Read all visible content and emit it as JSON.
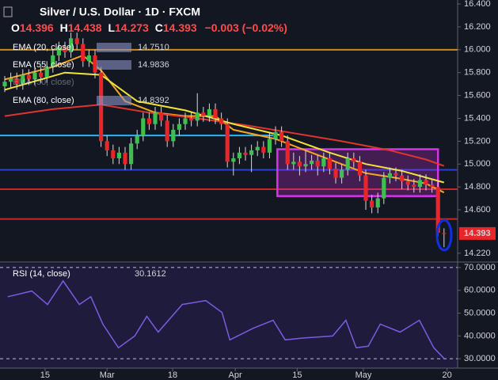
{
  "chart_data": {
    "type": "candlestick",
    "title": "Silver / U.S. Dollar · 1D · FXCM",
    "quote": {
      "o_label": "O",
      "o": 14.396,
      "h_label": "H",
      "h": 14.438,
      "l_label": "L",
      "l": 14.273,
      "c_label": "C",
      "c": 14.393,
      "change": "−0.003 (−0.02%)"
    },
    "ohlc": [
      [
        15.68,
        15.77,
        15.63,
        15.72
      ],
      [
        15.72,
        15.8,
        15.67,
        15.75
      ],
      [
        15.75,
        15.8,
        15.65,
        15.7
      ],
      [
        15.7,
        15.83,
        15.65,
        15.78
      ],
      [
        15.78,
        15.83,
        15.69,
        15.74
      ],
      [
        15.74,
        15.85,
        15.69,
        15.8
      ],
      [
        15.8,
        15.85,
        15.71,
        15.76
      ],
      [
        15.76,
        15.9,
        15.71,
        15.85
      ],
      [
        15.85,
        16.0,
        15.8,
        15.95
      ],
      [
        15.95,
        16.07,
        15.9,
        16.02
      ],
      [
        16.02,
        16.07,
        15.93,
        15.98
      ],
      [
        15.98,
        16.15,
        15.93,
        16.1
      ],
      [
        16.1,
        16.15,
        16.0,
        16.05
      ],
      [
        16.05,
        16.1,
        15.85,
        15.9
      ],
      [
        15.9,
        16.0,
        15.85,
        15.95
      ],
      [
        15.95,
        16.0,
        15.75,
        15.8
      ],
      [
        15.8,
        15.85,
        15.15,
        15.2
      ],
      [
        15.2,
        15.25,
        15.07,
        15.12
      ],
      [
        15.12,
        15.17,
        15.0,
        15.05
      ],
      [
        15.05,
        15.15,
        15.0,
        15.1
      ],
      [
        15.1,
        15.15,
        14.95,
        15.0
      ],
      [
        15.0,
        15.23,
        14.95,
        15.18
      ],
      [
        15.18,
        15.3,
        15.13,
        15.25
      ],
      [
        15.25,
        15.45,
        15.2,
        15.4
      ],
      [
        15.4,
        15.45,
        15.3,
        15.35
      ],
      [
        15.35,
        15.5,
        15.3,
        15.45
      ],
      [
        15.45,
        15.5,
        15.33,
        15.38
      ],
      [
        15.38,
        15.43,
        15.15,
        15.2
      ],
      [
        15.2,
        15.35,
        15.15,
        15.3
      ],
      [
        15.3,
        15.4,
        15.25,
        15.35
      ],
      [
        15.35,
        15.45,
        15.3,
        15.4
      ],
      [
        15.4,
        15.45,
        15.33,
        15.38
      ],
      [
        15.38,
        15.62,
        15.33,
        15.45
      ],
      [
        15.45,
        15.5,
        15.37,
        15.42
      ],
      [
        15.42,
        15.53,
        15.37,
        15.48
      ],
      [
        15.48,
        15.53,
        15.35,
        15.4
      ],
      [
        15.4,
        15.45,
        15.3,
        15.35
      ],
      [
        15.35,
        15.4,
        14.97,
        15.02
      ],
      [
        15.02,
        15.1,
        14.9,
        15.05
      ],
      [
        15.05,
        15.15,
        15.0,
        15.1
      ],
      [
        15.1,
        15.15,
        15.03,
        15.08
      ],
      [
        15.08,
        15.17,
        14.93,
        15.12
      ],
      [
        15.12,
        15.2,
        15.07,
        15.15
      ],
      [
        15.15,
        15.2,
        15.05,
        15.1
      ],
      [
        15.1,
        15.27,
        15.05,
        15.22
      ],
      [
        15.22,
        15.33,
        15.17,
        15.28
      ],
      [
        15.28,
        15.33,
        15.15,
        15.2
      ],
      [
        15.2,
        15.25,
        14.95,
        15.0
      ],
      [
        15.0,
        15.1,
        14.95,
        15.02
      ],
      [
        15.02,
        15.07,
        14.9,
        14.98
      ],
      [
        14.98,
        15.12,
        14.93,
        15.0
      ],
      [
        15.0,
        15.08,
        14.95,
        15.03
      ],
      [
        15.03,
        15.08,
        14.9,
        14.98
      ],
      [
        14.98,
        15.1,
        14.93,
        15.05
      ],
      [
        15.05,
        15.1,
        14.91,
        14.96
      ],
      [
        14.96,
        15.01,
        14.83,
        14.88
      ],
      [
        14.88,
        15.0,
        14.83,
        14.95
      ],
      [
        14.95,
        15.1,
        14.9,
        15.05
      ],
      [
        15.05,
        15.1,
        14.97,
        15.02
      ],
      [
        15.02,
        15.07,
        14.85,
        14.9
      ],
      [
        14.9,
        14.95,
        14.6,
        14.68
      ],
      [
        14.68,
        14.73,
        14.57,
        14.62
      ],
      [
        14.62,
        14.75,
        14.57,
        14.7
      ],
      [
        14.7,
        14.93,
        14.65,
        14.88
      ],
      [
        14.88,
        14.97,
        14.83,
        14.92
      ],
      [
        14.92,
        14.97,
        14.85,
        14.9
      ],
      [
        14.9,
        14.95,
        14.78,
        14.85
      ],
      [
        14.85,
        14.9,
        14.77,
        14.82
      ],
      [
        14.82,
        14.87,
        14.75,
        14.8
      ],
      [
        14.8,
        14.91,
        14.75,
        14.86
      ],
      [
        14.86,
        14.91,
        14.77,
        14.82
      ],
      [
        14.82,
        14.87,
        14.75,
        14.8
      ],
      [
        14.8,
        14.85,
        14.37,
        14.4
      ],
      [
        14.396,
        14.438,
        14.273,
        14.393
      ]
    ],
    "up_color": "#3fbf4f",
    "down_color": "#e8262a",
    "ema": [
      {
        "name": "EMA (20, close)",
        "value_label": "14.7510",
        "color": "#f5a623",
        "x": [
          0,
          8,
          13,
          16,
          20,
          25,
          30,
          35,
          38,
          45,
          50,
          55,
          60,
          65,
          70,
          73
        ],
        "values": [
          15.74,
          15.85,
          15.95,
          15.82,
          15.55,
          15.45,
          15.42,
          15.42,
          15.3,
          15.22,
          15.12,
          15.02,
          14.92,
          14.88,
          14.83,
          14.751
        ]
      },
      {
        "name": "EMA (55, close)",
        "value_label": "14.9836",
        "color": "#e0342f",
        "x": [
          0,
          8,
          16,
          24,
          32,
          40,
          48,
          56,
          64,
          70,
          73
        ],
        "values": [
          15.42,
          15.48,
          15.52,
          15.45,
          15.4,
          15.34,
          15.27,
          15.2,
          15.12,
          15.04,
          14.9836
        ]
      },
      {
        "name": "EMA (80, close)",
        "value_label": "14.8392",
        "color": "#f2e33a",
        "x": [
          0,
          10,
          16,
          22,
          30,
          38,
          46,
          54,
          60,
          66,
          73
        ],
        "values": [
          15.65,
          15.8,
          15.78,
          15.55,
          15.47,
          15.35,
          15.25,
          15.1,
          15.0,
          14.94,
          14.8392
        ]
      }
    ],
    "hidden_indicator": "EMA (30, close)",
    "hlines": [
      {
        "value": 16.0,
        "color": "#c98a1e"
      },
      {
        "value": 15.25,
        "color": "#29b6f6",
        "x_end": 44.6
      },
      {
        "value": 14.95,
        "color": "#2a3fd6"
      },
      {
        "value": 14.78,
        "color": "#c62828"
      },
      {
        "value": 14.52,
        "color": "#c62828"
      }
    ],
    "box": {
      "x": [
        45.3,
        72
      ],
      "y": [
        15.13,
        14.72
      ],
      "color": "#d633e8"
    },
    "xlim": [
      -0.79,
      75.26
    ],
    "xticks": [
      {
        "value": 6.7,
        "label": "15"
      },
      {
        "value": 17,
        "label": "Mar"
      },
      {
        "value": 27.9,
        "label": "18"
      },
      {
        "value": 38.3,
        "label": "Apr"
      },
      {
        "value": 48.6,
        "label": "15"
      },
      {
        "value": 59.6,
        "label": "May"
      },
      {
        "value": 73.5,
        "label": "20"
      }
    ],
    "ylim": [
      14.15,
      16.435
    ],
    "yticks": [
      {
        "value": 16.4,
        "label": "16.400"
      },
      {
        "value": 16.2,
        "label": "16.200"
      },
      {
        "value": 16.0,
        "label": "16.000"
      },
      {
        "value": 15.8,
        "label": "15.800"
      },
      {
        "value": 15.6,
        "label": "15.600"
      },
      {
        "value": 15.4,
        "label": "15.400"
      },
      {
        "value": 15.2,
        "label": "15.200"
      },
      {
        "value": 15.0,
        "label": "15.000"
      },
      {
        "value": 14.8,
        "label": "14.800"
      },
      {
        "value": 14.6,
        "label": "14.600"
      },
      {
        "value": 14.22,
        "label": "14.220"
      }
    ],
    "rsi": {
      "type": "line",
      "title": "RSI (14, close)",
      "value_label": "30.1612",
      "color": "#7b5ce0",
      "x": [
        0.5,
        4.5,
        7.1,
        9.7,
        12.4,
        14.3,
        16.3,
        18.9,
        21.6,
        23.6,
        25.5,
        29.5,
        33.4,
        36.1,
        37.4,
        41.3,
        44.6,
        46.6,
        49.2,
        54.5,
        56.7,
        58.4,
        60.4,
        62.4,
        65.7,
        68.9,
        71.3,
        73
      ],
      "values": [
        57.2,
        59.7,
        53.8,
        64.1,
        53.8,
        57.2,
        45.2,
        34.8,
        40.0,
        48.6,
        41.7,
        53.8,
        55.5,
        50.3,
        38.3,
        43.4,
        46.9,
        38.3,
        39.0,
        40.0,
        46.9,
        34.8,
        35.5,
        45.2,
        41.7,
        46.9,
        34.8,
        30.1612
      ],
      "ylim": [
        25.9,
        71.7
      ],
      "yticks": [
        {
          "value": 70,
          "label": "70.0000"
        },
        {
          "value": 60,
          "label": "60.0000"
        },
        {
          "value": 50,
          "label": "50.0000"
        },
        {
          "value": 40,
          "label": "40.0000"
        },
        {
          "value": 30,
          "label": "30.0000"
        }
      ],
      "bands": [
        70,
        30
      ]
    }
  }
}
